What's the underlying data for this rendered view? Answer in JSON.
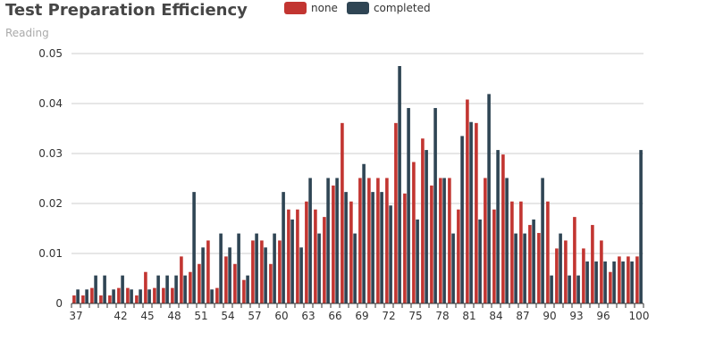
{
  "chart_data": {
    "type": "bar",
    "title": "Test Preparation Efficiency",
    "subtitle": "Reading",
    "legend_position": "top-center",
    "colors": {
      "none": "#c23531",
      "completed": "#2f4554"
    },
    "y_ticks": [
      "0",
      "0.01",
      "0.02",
      "0.03",
      "0.04",
      "0.05"
    ],
    "ylim": [
      0,
      0.05
    ],
    "x_tick_labels": [
      "37",
      "42",
      "45",
      "48",
      "51",
      "54",
      "57",
      "60",
      "63",
      "66",
      "69",
      "72",
      "75",
      "78",
      "81",
      "84",
      "87",
      "90",
      "93",
      "96",
      "100"
    ],
    "categories": [
      "37",
      "38",
      "39",
      "40",
      "41",
      "42",
      "43",
      "44",
      "45",
      "46",
      "47",
      "48",
      "49",
      "50",
      "51",
      "52",
      "53",
      "54",
      "55",
      "56",
      "57",
      "58",
      "59",
      "60",
      "61",
      "62",
      "63",
      "64",
      "65",
      "66",
      "67",
      "68",
      "69",
      "70",
      "71",
      "72",
      "73",
      "74",
      "75",
      "76",
      "77",
      "78",
      "79",
      "80",
      "81",
      "82",
      "83",
      "84",
      "85",
      "86",
      "87",
      "88",
      "89",
      "90",
      "91",
      "92",
      "93",
      "94",
      "95",
      "96",
      "97",
      "98",
      "99",
      "100"
    ],
    "series": [
      {
        "name": "none",
        "values": [
          0.0016,
          0.0016,
          0.0031,
          0.0016,
          0.0016,
          0.0031,
          0.0031,
          0.0016,
          0.0063,
          0.0031,
          0.0031,
          0.0031,
          0.0094,
          0.0063,
          0.0079,
          0.0126,
          0.0031,
          0.0094,
          0.0079,
          0.0047,
          0.0126,
          0.0126,
          0.0079,
          0.0126,
          0.0188,
          0.0188,
          0.0204,
          0.0188,
          0.0173,
          0.0236,
          0.0361,
          0.0204,
          0.0251,
          0.0251,
          0.0251,
          0.0251,
          0.0361,
          0.022,
          0.0283,
          0.033,
          0.0236,
          0.0251,
          0.0251,
          0.0188,
          0.0408,
          0.0361,
          0.0251,
          0.0188,
          0.0298,
          0.0204,
          0.0204,
          0.0157,
          0.0141,
          0.0204,
          0.011,
          0.0126,
          0.0173,
          0.011,
          0.0157,
          0.0126,
          0.0063,
          0.0094,
          0.0094,
          0.0094
        ]
      },
      {
        "name": "completed",
        "values": [
          0.0028,
          0.0028,
          0.0056,
          0.0056,
          0.0028,
          0.0056,
          0.0028,
          0.0028,
          0.0028,
          0.0056,
          0.0056,
          0.0056,
          0.0056,
          0.0223,
          0.0112,
          0.0028,
          0.014,
          0.0112,
          0.014,
          0.0056,
          0.014,
          0.0112,
          0.014,
          0.0223,
          0.0168,
          0.0112,
          0.0251,
          0.014,
          0.0251,
          0.0251,
          0.0223,
          0.014,
          0.0279,
          0.0223,
          0.0223,
          0.0196,
          0.0475,
          0.0391,
          0.0168,
          0.0307,
          0.0391,
          0.0251,
          0.014,
          0.0335,
          0.0363,
          0.0168,
          0.0419,
          0.0307,
          0.0251,
          0.014,
          0.014,
          0.0168,
          0.0251,
          0.0056,
          0.014,
          0.0056,
          0.0056,
          0.0084,
          0.0084,
          0.0084,
          0.0084,
          0.0084,
          0.0084,
          0.0307
        ]
      }
    ]
  }
}
